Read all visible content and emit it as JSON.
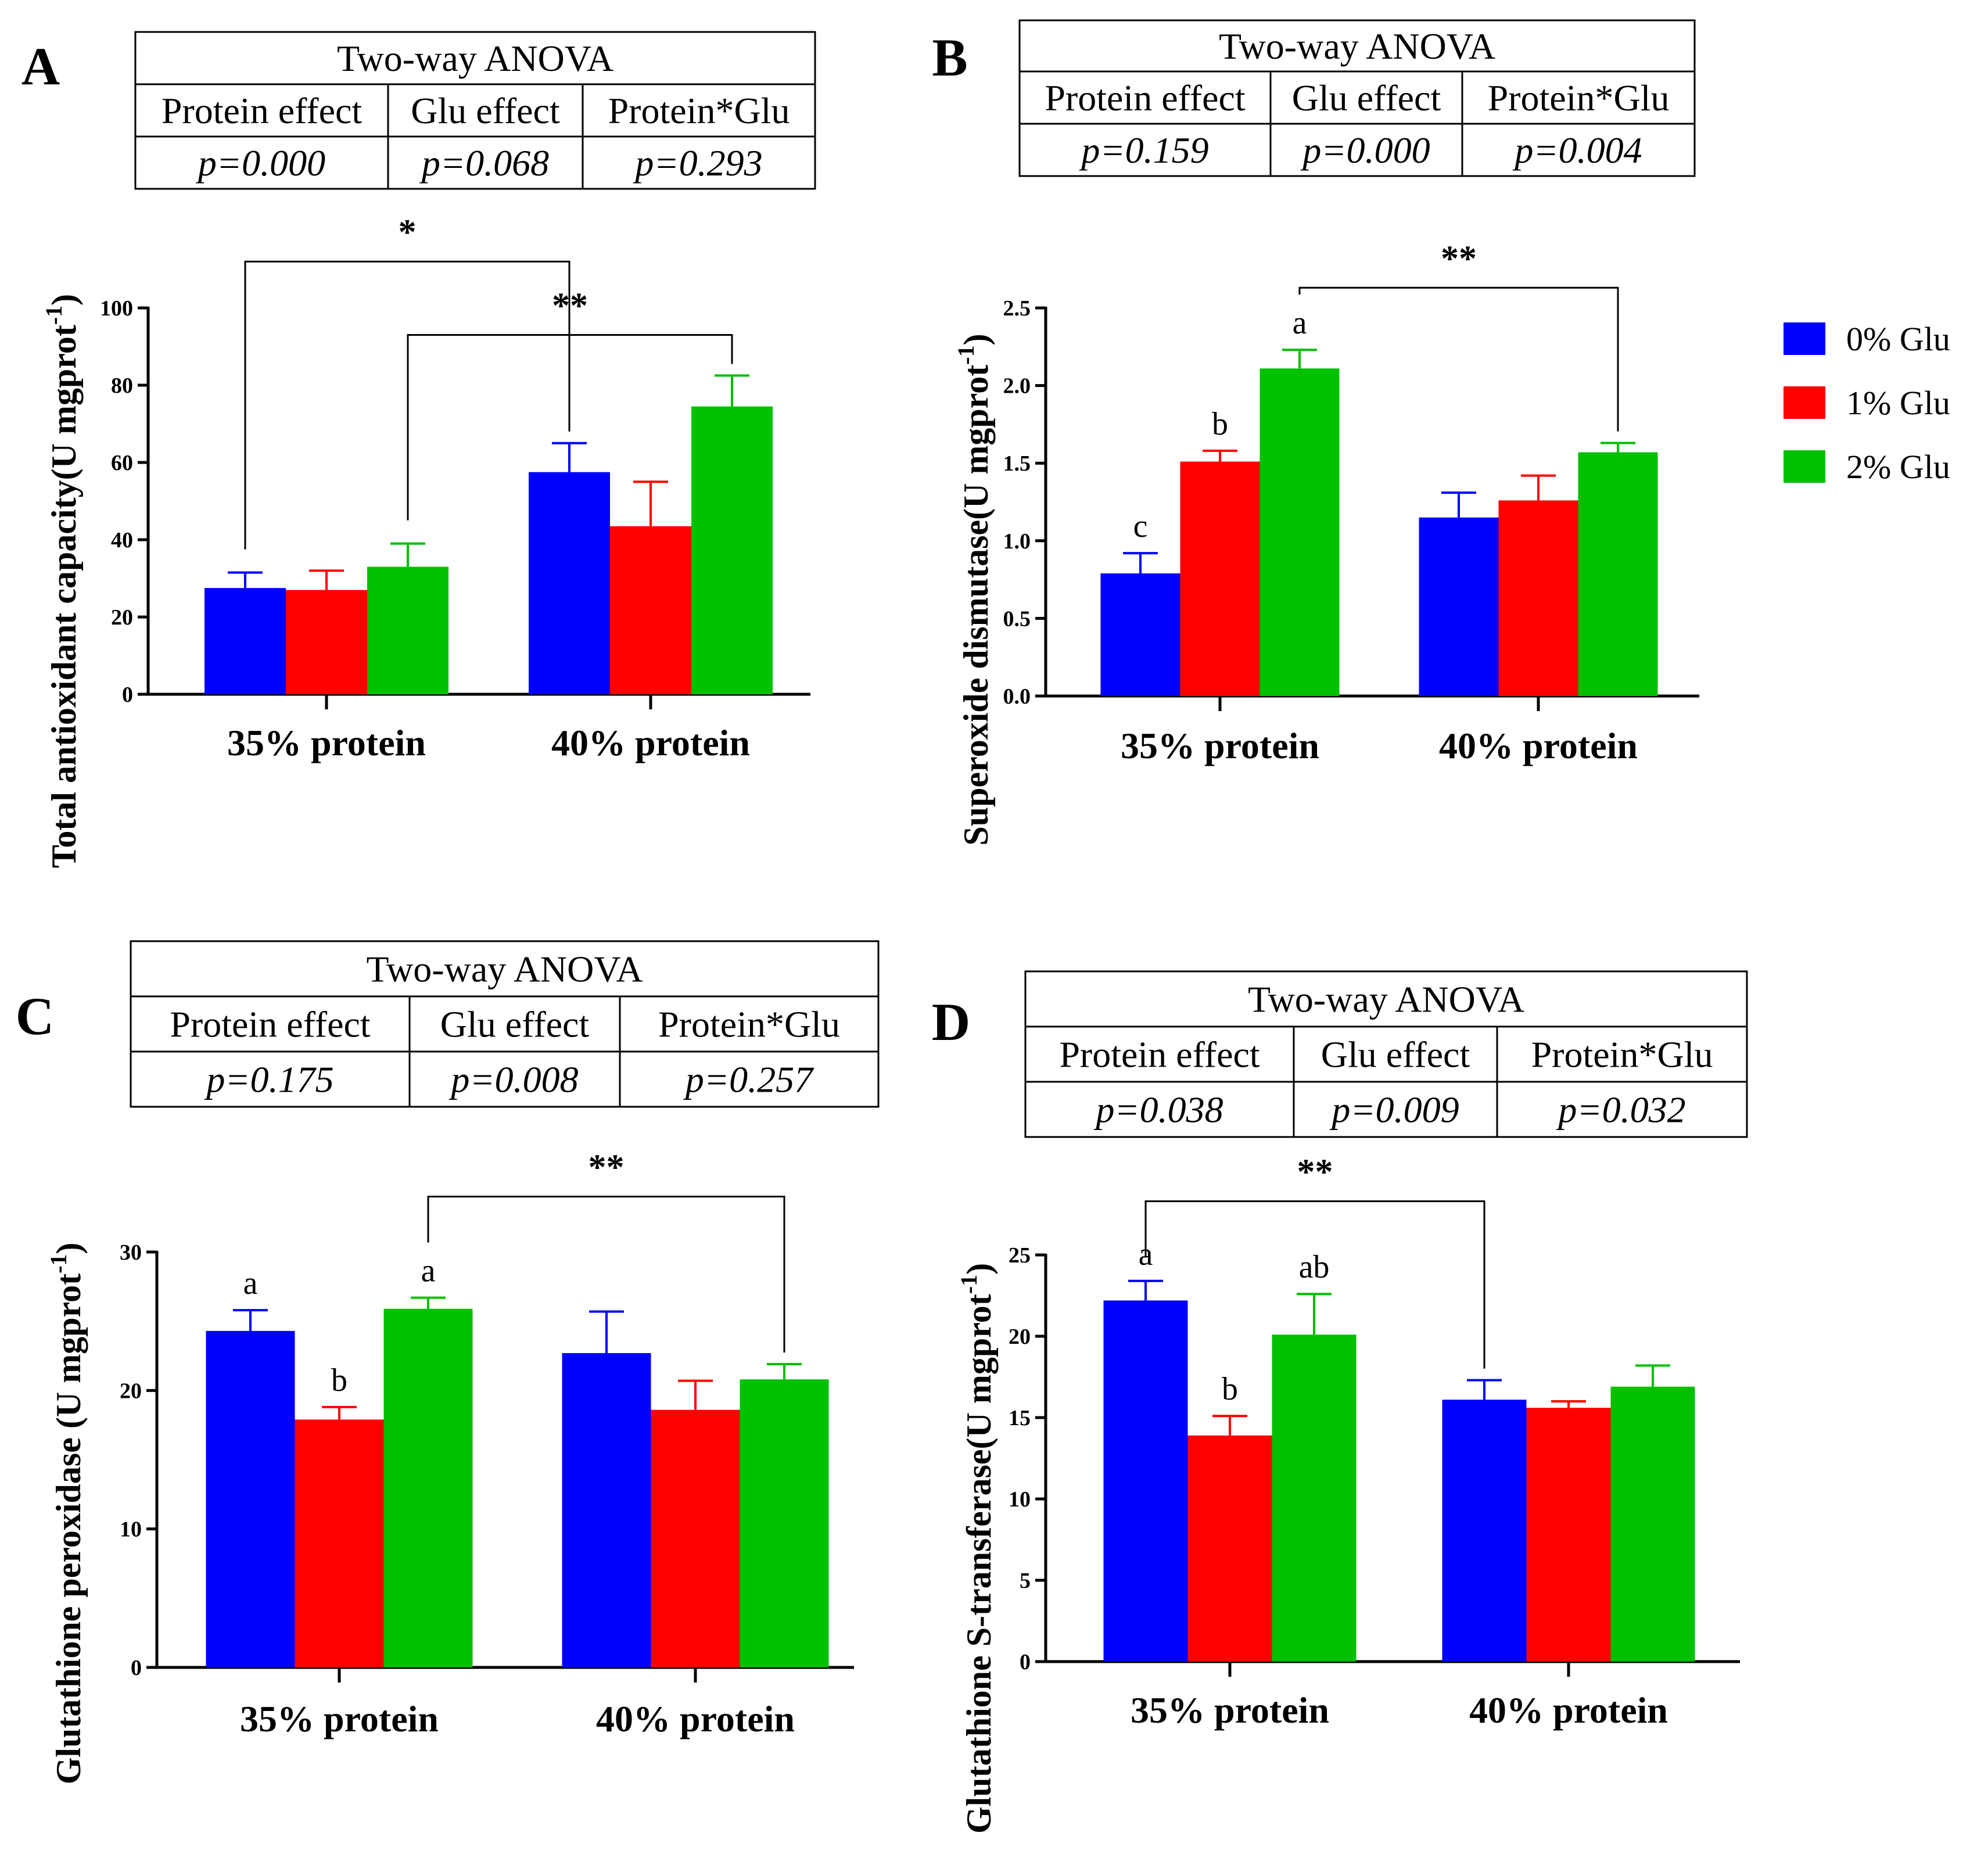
{
  "legend": [
    {
      "label": "0% Glu",
      "color": "#0000FF"
    },
    {
      "label": "1% Glu",
      "color": "#FF0000"
    },
    {
      "label": "2% Glu",
      "color": "#00C000"
    }
  ],
  "chart_data": [
    {
      "panel": "A",
      "type": "bar",
      "categories": [
        "35% protein",
        "40% protein"
      ],
      "ylabel": "Total antioxidant capacity(U mgprot",
      "ylabel_sup": "-1",
      "ylabel_close": ")",
      "ylim": [
        0,
        100
      ],
      "ticks": [
        0,
        20,
        40,
        60,
        80,
        100
      ],
      "tick_labels": [
        "0",
        "20",
        "40",
        "60",
        "80",
        "100"
      ],
      "series": [
        {
          "name": "0% Glu",
          "values": [
            27.5,
            57.5
          ],
          "errors": [
            4.0,
            7.5
          ],
          "letters": [
            "",
            ""
          ]
        },
        {
          "name": "1% Glu",
          "values": [
            27.0,
            43.5
          ],
          "errors": [
            5.0,
            11.5
          ],
          "letters": [
            "",
            ""
          ]
        },
        {
          "name": "2% Glu",
          "values": [
            33.0,
            74.5
          ],
          "errors": [
            6.0,
            8.0
          ],
          "letters": [
            "",
            ""
          ]
        }
      ],
      "anova": {
        "title": "Two-way ANOVA",
        "headers": [
          "Protein effect",
          "Glu effect",
          "Protein*Glu"
        ],
        "values": [
          "p=0.000",
          "p=0.068",
          "p=0.293"
        ]
      },
      "comparisons": [
        {
          "label": "*",
          "from": [
            0,
            0
          ],
          "to": [
            1,
            0
          ],
          "level": 112
        },
        {
          "label": "**",
          "from": [
            0,
            2
          ],
          "to": [
            1,
            2
          ],
          "level": 93
        }
      ]
    },
    {
      "panel": "B",
      "type": "bar",
      "categories": [
        "35% protein",
        "40% protein"
      ],
      "ylabel": "Superoxide dismutase(U mgprot",
      "ylabel_sup": "-1",
      "ylabel_close": ")",
      "ylim": [
        0,
        2.5
      ],
      "ticks": [
        0,
        0.5,
        1.0,
        1.5,
        2.0,
        2.5
      ],
      "tick_labels": [
        "0.0",
        "0.5",
        "1.0",
        "1.5",
        "2.0",
        "2.5"
      ],
      "series": [
        {
          "name": "0% Glu",
          "values": [
            0.79,
            1.15
          ],
          "errors": [
            0.13,
            0.16
          ],
          "letters": [
            "c",
            ""
          ]
        },
        {
          "name": "1% Glu",
          "values": [
            1.51,
            1.26
          ],
          "errors": [
            0.07,
            0.16
          ],
          "letters": [
            "b",
            ""
          ]
        },
        {
          "name": "2% Glu",
          "values": [
            2.11,
            1.57
          ],
          "errors": [
            0.12,
            0.06
          ],
          "letters": [
            "a",
            ""
          ]
        }
      ],
      "anova": {
        "title": "Two-way ANOVA",
        "headers": [
          "Protein effect",
          "Glu effect",
          "Protein*Glu"
        ],
        "values": [
          "p=0.159",
          "p=0.000",
          "p=0.004"
        ]
      },
      "comparisons": [
        {
          "label": "**",
          "from": [
            0,
            2
          ],
          "to": [
            1,
            2
          ],
          "level": 2.63
        }
      ]
    },
    {
      "panel": "C",
      "type": "bar",
      "categories": [
        "35% protein",
        "40% protein"
      ],
      "ylabel": "Glutathione peroxidase (U mgprot",
      "ylabel_sup": "-1",
      "ylabel_close": ")",
      "ylim": [
        0,
        30
      ],
      "ticks": [
        0,
        10,
        20,
        30
      ],
      "tick_labels": [
        "0",
        "10",
        "20",
        "30"
      ],
      "series": [
        {
          "name": "0% Glu",
          "values": [
            24.3,
            22.7
          ],
          "errors": [
            1.5,
            3.0
          ],
          "letters": [
            "a",
            ""
          ]
        },
        {
          "name": "1% Glu",
          "values": [
            17.9,
            18.6
          ],
          "errors": [
            0.9,
            2.1
          ],
          "letters": [
            "b",
            ""
          ]
        },
        {
          "name": "2% Glu",
          "values": [
            25.9,
            20.8
          ],
          "errors": [
            0.8,
            1.1
          ],
          "letters": [
            "a",
            ""
          ]
        }
      ],
      "anova": {
        "title": "Two-way ANOVA",
        "headers": [
          "Protein effect",
          "Glu effect",
          "Protein*Glu"
        ],
        "values": [
          "p=0.175",
          "p=0.008",
          "p=0.257"
        ]
      },
      "comparisons": [
        {
          "label": "**",
          "from": [
            0,
            2
          ],
          "to": [
            1,
            2
          ],
          "level": 34.0
        }
      ]
    },
    {
      "panel": "D",
      "type": "bar",
      "categories": [
        "35% protein",
        "40% protein"
      ],
      "ylabel": "Glutathione S-transferase(U mgprot",
      "ylabel_sup": "-1",
      "ylabel_close": ")",
      "ylim": [
        0,
        25
      ],
      "ticks": [
        0,
        5,
        10,
        15,
        20,
        25
      ],
      "tick_labels": [
        "0",
        "5",
        "10",
        "15",
        "20",
        "25"
      ],
      "series": [
        {
          "name": "0% Glu",
          "values": [
            22.2,
            16.1
          ],
          "errors": [
            1.2,
            1.2
          ],
          "letters": [
            "a",
            ""
          ]
        },
        {
          "name": "1% Glu",
          "values": [
            13.9,
            15.6
          ],
          "errors": [
            1.2,
            0.4
          ],
          "letters": [
            "b",
            ""
          ]
        },
        {
          "name": "2% Glu",
          "values": [
            20.1,
            16.9
          ],
          "errors": [
            2.5,
            1.3
          ],
          "letters": [
            "ab",
            ""
          ]
        }
      ],
      "anova": {
        "title": "Two-way ANOVA",
        "headers": [
          "Protein effect",
          "Glu effect",
          "Protein*Glu"
        ],
        "values": [
          "p=0.038",
          "p=0.009",
          "p=0.032"
        ]
      },
      "comparisons": [
        {
          "label": "**",
          "from": [
            0,
            0
          ],
          "to": [
            1,
            0
          ],
          "level": 28.3
        }
      ]
    }
  ]
}
